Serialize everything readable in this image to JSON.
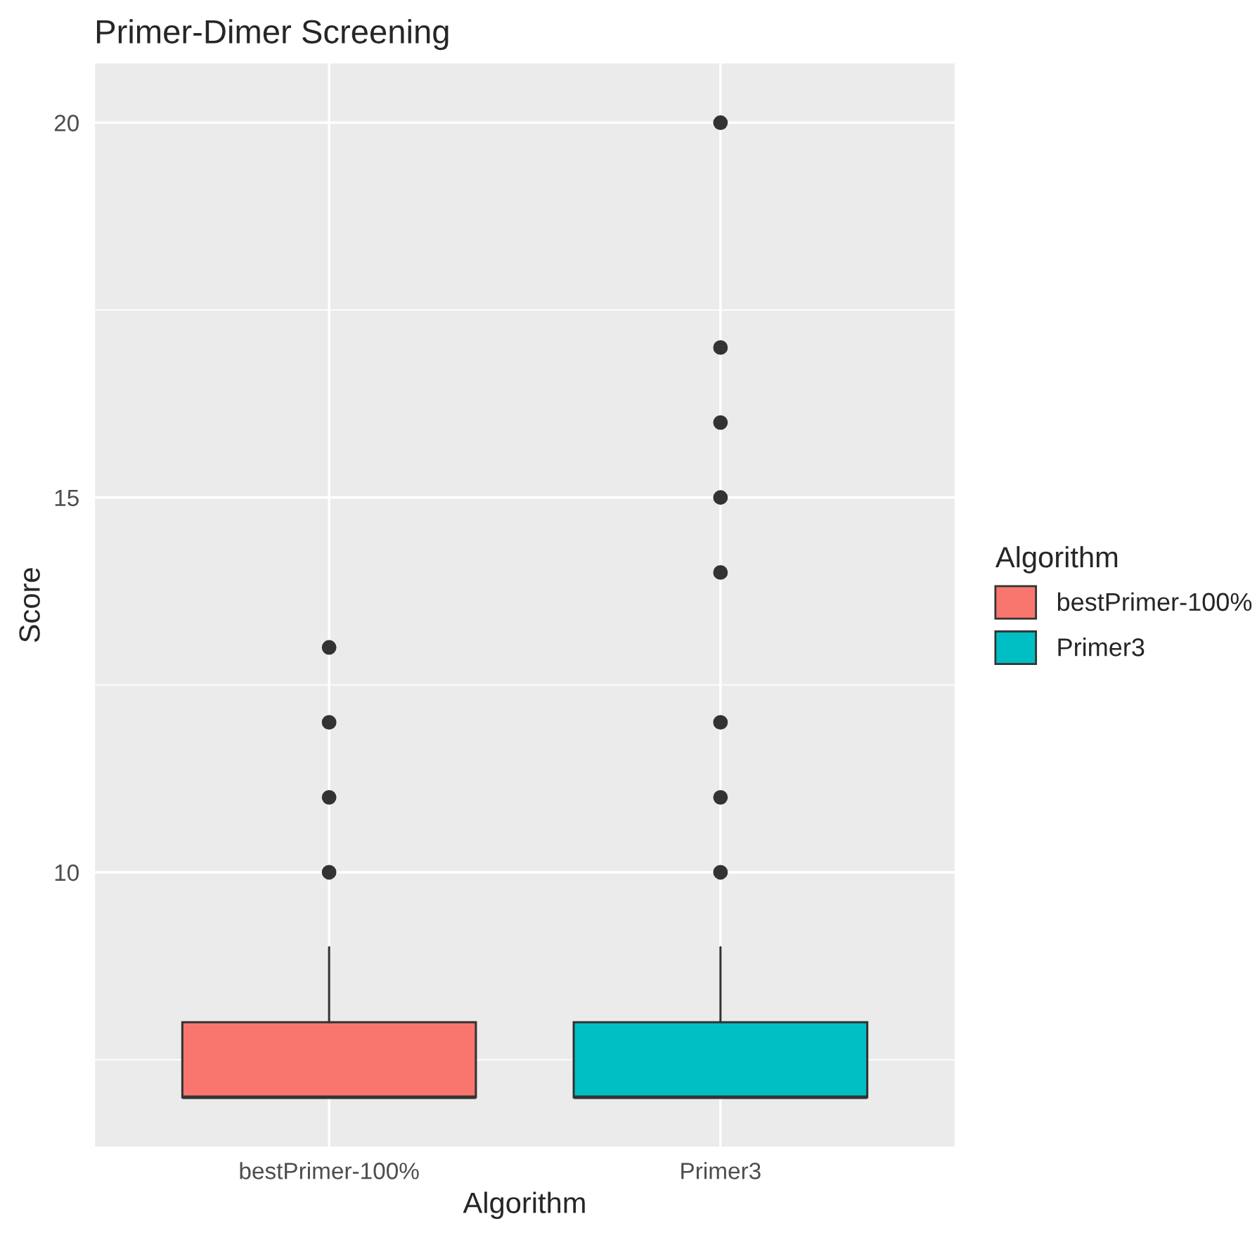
{
  "chart_data": {
    "type": "box",
    "title": "Primer-Dimer Screening",
    "xlabel": "Algorithm",
    "ylabel": "Score",
    "legend_title": "Algorithm",
    "categories": [
      "bestPrimer-100%",
      "Primer3"
    ],
    "series": [
      {
        "name": "bestPrimer-100%",
        "color": "#f8766d",
        "boxes": [
          {
            "low": 7,
            "q1": 7,
            "median": 7,
            "q3": 8,
            "high": 9,
            "outliers": [
              10,
              11,
              12,
              13
            ]
          },
          null
        ]
      },
      {
        "name": "Primer3",
        "color": "#00bfc4",
        "boxes": [
          null,
          {
            "low": 7,
            "q1": 7,
            "median": 7,
            "q3": 8,
            "high": 9,
            "outliers": [
              10,
              11,
              12,
              14,
              15,
              16,
              17,
              20
            ]
          }
        ]
      }
    ],
    "ylim": [
      6.33,
      20.8
    ],
    "yticks": [
      10,
      15,
      20
    ],
    "grid": true,
    "legend": "right"
  }
}
